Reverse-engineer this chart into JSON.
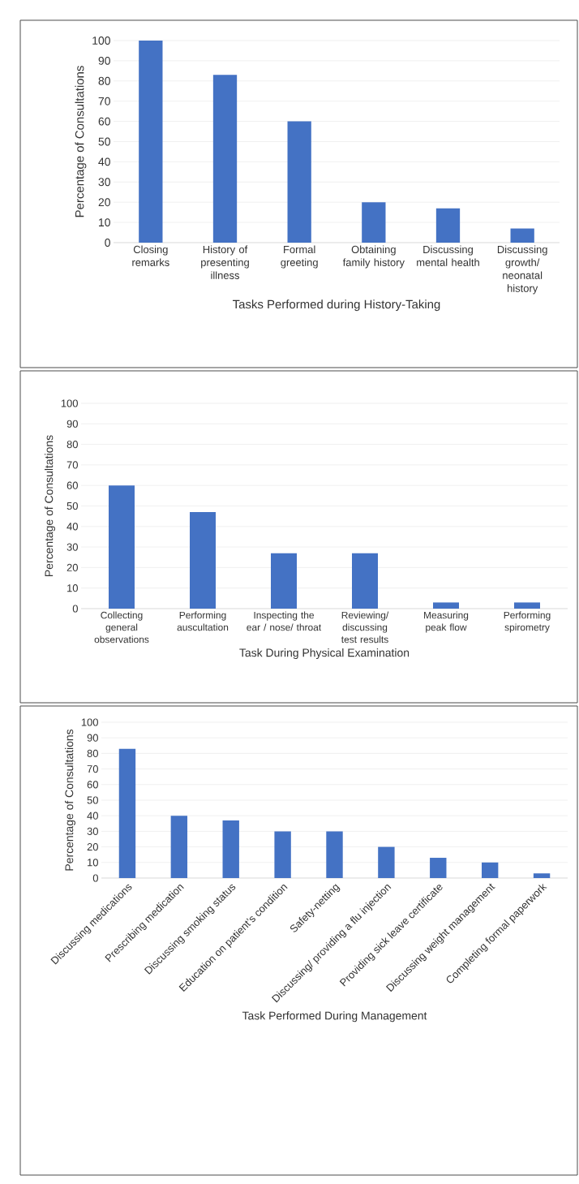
{
  "chart_data": [
    {
      "type": "bar",
      "xlabel": "Tasks Performed during History-Taking",
      "ylabel": "Percentage of Consultations",
      "categories": [
        "Closing remarks",
        "History of presenting illness",
        "Formal greeting",
        "Obtaining family history",
        "Discussing mental health",
        "Discussing growth/ neonatal history"
      ],
      "values": [
        100,
        83,
        60,
        20,
        17,
        7
      ],
      "color": "#4472c4",
      "ylim": [
        0,
        100
      ],
      "yticks": [
        0,
        10,
        20,
        30,
        40,
        50,
        60,
        70,
        80,
        90,
        100
      ],
      "grid": "y"
    },
    {
      "type": "bar",
      "xlabel": "Task During Physical Examination",
      "ylabel": "Percentage of Consultations",
      "categories": [
        "Collecting general observations",
        "Performing auscultation",
        "Inspecting the ear / nose/ throat",
        "Reviewing/ discussing test results",
        "Measuring peak flow",
        "Performing spirometry"
      ],
      "values": [
        60,
        47,
        27,
        27,
        3,
        3
      ],
      "color": "#4472c4",
      "ylim": [
        0,
        100
      ],
      "yticks": [
        0,
        10,
        20,
        30,
        40,
        50,
        60,
        70,
        80,
        90,
        100
      ],
      "grid": "y"
    },
    {
      "type": "bar",
      "xlabel": "Task Performed During Management",
      "ylabel": "Percentage of Consultations",
      "categories": [
        "Discussing medications",
        "Prescribing medication",
        "Discussing smoking status",
        "Education on patient’s condition",
        "Safety-netting",
        "Discussing/ providing a flu injection",
        "Providing sick leave certificate",
        "Discussing weight management",
        "Completing formal paperwork"
      ],
      "values": [
        83,
        40,
        37,
        30,
        30,
        20,
        13,
        10,
        3
      ],
      "color": "#4472c4",
      "ylim": [
        0,
        100
      ],
      "yticks": [
        0,
        10,
        20,
        30,
        40,
        50,
        60,
        70,
        80,
        90,
        100
      ],
      "grid": "y"
    }
  ]
}
